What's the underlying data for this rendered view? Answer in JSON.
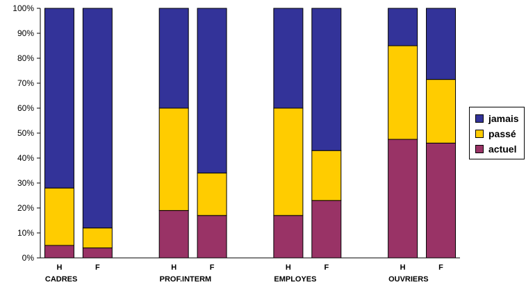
{
  "chart_data": {
    "type": "bar",
    "stacked": true,
    "percent": true,
    "bars": [
      {
        "label": "H",
        "group": "CADRES"
      },
      {
        "label": "F",
        "group": "CADRES"
      },
      {
        "label": "H",
        "group": "PROF.INTERM"
      },
      {
        "label": "F",
        "group": "PROF.INTERM"
      },
      {
        "label": "H",
        "group": "EMPLOYES"
      },
      {
        "label": "F",
        "group": "EMPLOYES"
      },
      {
        "label": "H",
        "group": "OUVRIERS"
      },
      {
        "label": "F",
        "group": "OUVRIERS"
      }
    ],
    "groups": [
      "CADRES",
      "PROF.INTERM",
      "EMPLOYES",
      "OUVRIERS"
    ],
    "series": [
      {
        "name": "actuel",
        "color": "#993366",
        "values": [
          5,
          4,
          19,
          17,
          17,
          23,
          47.5,
          46
        ]
      },
      {
        "name": "passé",
        "color": "#ffcc00",
        "values": [
          23,
          8,
          41,
          17,
          43,
          20,
          37.5,
          25.5
        ]
      },
      {
        "name": "jamais",
        "color": "#333399",
        "values": [
          72,
          88,
          40,
          66,
          40,
          57,
          15,
          28.5
        ]
      }
    ],
    "ylim": [
      0,
      100
    ],
    "yticks": [
      "0%",
      "10%",
      "20%",
      "30%",
      "40%",
      "50%",
      "60%",
      "70%",
      "80%",
      "90%",
      "100%"
    ],
    "grid": false,
    "legend": {
      "position": "right",
      "items": [
        {
          "label": "jamais",
          "color": "#333399"
        },
        {
          "label": "passé",
          "color": "#ffcc00"
        },
        {
          "label": "actuel",
          "color": "#993366"
        }
      ]
    }
  }
}
